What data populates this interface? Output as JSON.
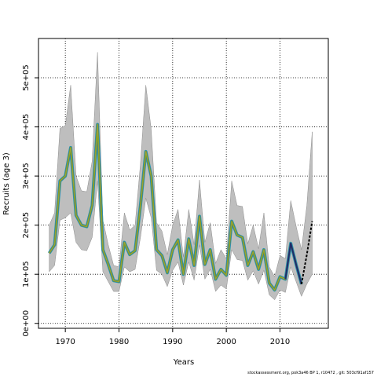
{
  "chart_data": {
    "type": "line",
    "xlabel": "Years",
    "ylabel": "Recruits (age 3)",
    "xlim": [
      1965,
      2019
    ],
    "ylim": [
      -10000,
      580000
    ],
    "x_ticks": [
      1970,
      1980,
      1990,
      2000,
      2010
    ],
    "x_tick_labels": [
      "1970",
      "1980",
      "1990",
      "2000",
      "2010"
    ],
    "y_ticks": [
      0,
      100000,
      200000,
      300000,
      400000,
      500000
    ],
    "y_tick_labels": [
      "0e+00",
      "1e+05",
      "2e+05",
      "3e+05",
      "4e+05",
      "5e+05"
    ],
    "grid": true,
    "colors": {
      "band": "#bebebe",
      "band_edge": "#8c8c8c",
      "estimate_lines": [
        "#2aa7a0",
        "#2f6fd6",
        "#6b9a1e",
        "#9aa336"
      ],
      "recent": "#1e2d6b",
      "projection": "#000000",
      "grid": "#000000"
    },
    "series": [
      {
        "x": [
          1967,
          1968,
          1969,
          1970,
          1971,
          1972,
          1973,
          1974,
          1975,
          1976,
          1977,
          1978,
          1979,
          1980,
          1981,
          1982,
          1983,
          1984,
          1985,
          1986,
          1987,
          1988,
          1989,
          1990,
          1991,
          1992,
          1993,
          1994,
          1995,
          1996,
          1997,
          1998,
          1999,
          2000,
          2001,
          2002,
          2003,
          2004,
          2005,
          2006,
          2007,
          2008,
          2009,
          2010,
          2011,
          2012,
          2013,
          2014
        ],
        "y": [
          143000,
          160000,
          290000,
          300000,
          358000,
          220000,
          200000,
          197000,
          240000,
          405000,
          150000,
          120000,
          87000,
          85000,
          165000,
          140000,
          148000,
          240000,
          350000,
          300000,
          150000,
          138000,
          103000,
          150000,
          170000,
          100000,
          172000,
          118000,
          218000,
          120000,
          150000,
          90000,
          110000,
          98000,
          208000,
          180000,
          175000,
          118000,
          146000,
          110000,
          150000,
          82000,
          68000,
          95000,
          90000,
          163000,
          120000,
          80000
        ],
        "lower": [
          105000,
          118000,
          210000,
          215000,
          225000,
          165000,
          150000,
          148000,
          175000,
          290000,
          105000,
          85000,
          65000,
          65000,
          115000,
          105000,
          110000,
          175000,
          255000,
          215000,
          108000,
          100000,
          75000,
          108000,
          125000,
          78000,
          125000,
          88000,
          160000,
          90000,
          110000,
          65000,
          78000,
          70000,
          150000,
          130000,
          128000,
          88000,
          107000,
          80000,
          108000,
          58000,
          48000,
          68000,
          63000,
          115000,
          85000,
          55000
        ],
        "upper": [
          200000,
          225000,
          397000,
          403000,
          485000,
          300000,
          270000,
          268000,
          330000,
          552000,
          210000,
          160000,
          118000,
          115000,
          225000,
          190000,
          200000,
          325000,
          485000,
          395000,
          205000,
          188000,
          140000,
          200000,
          232000,
          135000,
          232000,
          160000,
          292000,
          165000,
          205000,
          122000,
          150000,
          132000,
          290000,
          240000,
          238000,
          162000,
          200000,
          152000,
          225000,
          115000,
          95000,
          138000,
          132000,
          250000,
          198000,
          150000
        ]
      },
      {
        "x": [
          2014,
          2015,
          2016
        ],
        "y": [
          80000,
          140000,
          208000
        ],
        "lower": [
          55000,
          80000,
          100000
        ],
        "upper": [
          150000,
          240000,
          390000
        ]
      }
    ]
  },
  "footnote": "stockassessment.org, pok3a46 BP 1, r10472 , git: 503cf91af157"
}
